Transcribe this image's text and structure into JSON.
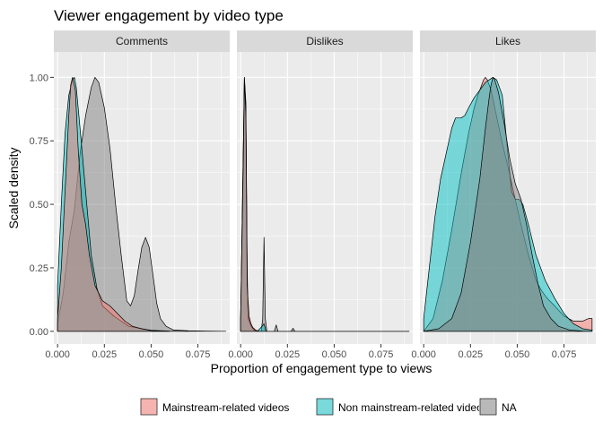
{
  "chart_data": {
    "type": "area",
    "title": "Viewer engagement by video type",
    "xlabel": "Proportion of engagement type to views",
    "ylabel": "Scaled density",
    "xlim": [
      -0.002,
      0.092
    ],
    "ylim": [
      -0.05,
      1.1
    ],
    "x_ticks": [
      0,
      0.025,
      0.05,
      0.075
    ],
    "x_tick_labels": [
      "0.000",
      "0.025",
      "0.050",
      "0.075"
    ],
    "y_ticks": [
      0,
      0.25,
      0.5,
      0.75,
      1
    ],
    "y_tick_labels": [
      "0.00",
      "0.25",
      "0.50",
      "0.75",
      "1.00"
    ],
    "grid": true,
    "legend_position": "bottom",
    "series_colors": {
      "Mainstream-related videos": "#F8766D",
      "Non mainstream-related videos": "#00BFC4",
      "NA": "#7F7F7F"
    },
    "legend": [
      {
        "name": "Mainstream-related videos",
        "color": "#F8766D"
      },
      {
        "name": "Non mainstream-related videos",
        "color": "#00BFC4"
      },
      {
        "name": "NA",
        "color": "#7F7F7F"
      }
    ],
    "facets": [
      {
        "name": "Comments",
        "series": [
          {
            "name": "NA",
            "points": [
              [
                0,
                0.03
              ],
              [
                0.003,
                0.15
              ],
              [
                0.006,
                0.35
              ],
              [
                0.009,
                0.48
              ],
              [
                0.012,
                0.7
              ],
              [
                0.015,
                0.85
              ],
              [
                0.018,
                0.96
              ],
              [
                0.02,
                1.0
              ],
              [
                0.022,
                0.98
              ],
              [
                0.025,
                0.88
              ],
              [
                0.028,
                0.72
              ],
              [
                0.031,
                0.5
              ],
              [
                0.034,
                0.3
              ],
              [
                0.037,
                0.12
              ],
              [
                0.039,
                0.1
              ],
              [
                0.041,
                0.14
              ],
              [
                0.043,
                0.24
              ],
              [
                0.045,
                0.33
              ],
              [
                0.047,
                0.37
              ],
              [
                0.049,
                0.33
              ],
              [
                0.051,
                0.22
              ],
              [
                0.053,
                0.11
              ],
              [
                0.055,
                0.05
              ],
              [
                0.058,
                0.02
              ],
              [
                0.062,
                0.005
              ],
              [
                0.07,
                0.002
              ],
              [
                0.08,
                0.001
              ],
              [
                0.09,
                0
              ]
            ]
          },
          {
            "name": "Non mainstream-related videos",
            "points": [
              [
                0,
                0.18
              ],
              [
                0.002,
                0.5
              ],
              [
                0.004,
                0.78
              ],
              [
                0.006,
                0.93
              ],
              [
                0.008,
                0.99
              ],
              [
                0.009,
                1.0
              ],
              [
                0.01,
                0.96
              ],
              [
                0.012,
                0.8
              ],
              [
                0.015,
                0.55
              ],
              [
                0.018,
                0.3
              ],
              [
                0.021,
                0.17
              ],
              [
                0.024,
                0.1
              ],
              [
                0.027,
                0.08
              ],
              [
                0.03,
                0.06
              ],
              [
                0.034,
                0.04
              ],
              [
                0.038,
                0.02
              ],
              [
                0.045,
                0.01
              ],
              [
                0.05,
                0.004
              ],
              [
                0.06,
                0.001
              ],
              [
                0.07,
                0
              ]
            ]
          },
          {
            "name": "Mainstream-related videos",
            "points": [
              [
                0,
                0.05
              ],
              [
                0.002,
                0.25
              ],
              [
                0.004,
                0.55
              ],
              [
                0.006,
                0.85
              ],
              [
                0.007,
                0.97
              ],
              [
                0.008,
                1.0
              ],
              [
                0.0095,
                0.95
              ],
              [
                0.011,
                0.72
              ],
              [
                0.013,
                0.5
              ],
              [
                0.015,
                0.42
              ],
              [
                0.017,
                0.3
              ],
              [
                0.02,
                0.18
              ],
              [
                0.024,
                0.12
              ],
              [
                0.028,
                0.1
              ],
              [
                0.032,
                0.07
              ],
              [
                0.036,
                0.04
              ],
              [
                0.04,
                0.02
              ],
              [
                0.045,
                0.01
              ],
              [
                0.05,
                0.003
              ],
              [
                0.06,
                0
              ]
            ]
          }
        ]
      },
      {
        "name": "Dislikes",
        "series": [
          {
            "name": "NA",
            "points": [
              [
                0,
                0.05
              ],
              [
                0.0015,
                0.75
              ],
              [
                0.002,
                1.0
              ],
              [
                0.0028,
                0.9
              ],
              [
                0.0035,
                0.25
              ],
              [
                0.004,
                0.06
              ],
              [
                0.005,
                0.04
              ],
              [
                0.006,
                0.02
              ],
              [
                0.007,
                0.01
              ],
              [
                0.008,
                0.002
              ],
              [
                0.0095,
                0.0
              ],
              [
                0.011,
                0.0
              ],
              [
                0.0118,
                0.05
              ],
              [
                0.0125,
                0.37
              ],
              [
                0.0132,
                0.05
              ],
              [
                0.014,
                0.0
              ],
              [
                0.018,
                0.0
              ],
              [
                0.019,
                0.025
              ],
              [
                0.02,
                0.0
              ],
              [
                0.027,
                0.0
              ],
              [
                0.028,
                0.012
              ],
              [
                0.029,
                0.0
              ],
              [
                0.09,
                0
              ]
            ]
          },
          {
            "name": "Non mainstream-related videos",
            "points": [
              [
                0,
                0.05
              ],
              [
                0.0015,
                0.75
              ],
              [
                0.002,
                1.0
              ],
              [
                0.0028,
                0.88
              ],
              [
                0.0035,
                0.2
              ],
              [
                0.004,
                0.05
              ],
              [
                0.005,
                0.03
              ],
              [
                0.006,
                0.015
              ],
              [
                0.007,
                0.005
              ],
              [
                0.009,
                0.0
              ],
              [
                0.0115,
                0.02
              ],
              [
                0.0125,
                0.03
              ],
              [
                0.0135,
                0.0
              ],
              [
                0.09,
                0
              ]
            ]
          },
          {
            "name": "Mainstream-related videos",
            "points": [
              [
                0,
                0.04
              ],
              [
                0.0015,
                0.7
              ],
              [
                0.002,
                0.99
              ],
              [
                0.0028,
                0.85
              ],
              [
                0.0035,
                0.18
              ],
              [
                0.0045,
                0.06
              ],
              [
                0.0055,
                0.03
              ],
              [
                0.0065,
                0.015
              ],
              [
                0.008,
                0.005
              ],
              [
                0.01,
                0.0
              ],
              [
                0.09,
                0
              ]
            ]
          }
        ]
      },
      {
        "name": "Likes",
        "series": [
          {
            "name": "Mainstream-related videos",
            "points": [
              [
                0,
                0.0
              ],
              [
                0.005,
                0.05
              ],
              [
                0.01,
                0.2
              ],
              [
                0.015,
                0.4
              ],
              [
                0.02,
                0.62
              ],
              [
                0.024,
                0.78
              ],
              [
                0.027,
                0.88
              ],
              [
                0.029,
                0.93
              ],
              [
                0.031,
                0.97
              ],
              [
                0.032,
                0.99
              ],
              [
                0.033,
                1.0
              ],
              [
                0.034,
                0.99
              ],
              [
                0.036,
                0.95
              ],
              [
                0.038,
                0.88
              ],
              [
                0.042,
                0.74
              ],
              [
                0.045,
                0.65
              ],
              [
                0.048,
                0.55
              ],
              [
                0.052,
                0.42
              ],
              [
                0.056,
                0.3
              ],
              [
                0.06,
                0.2
              ],
              [
                0.063,
                0.16
              ],
              [
                0.066,
                0.13
              ],
              [
                0.07,
                0.1
              ],
              [
                0.075,
                0.06
              ],
              [
                0.08,
                0.04
              ],
              [
                0.085,
                0.04
              ],
              [
                0.088,
                0.05
              ],
              [
                0.09,
                0.05
              ]
            ]
          },
          {
            "name": "Non mainstream-related videos",
            "points": [
              [
                0,
                0.05
              ],
              [
                0.003,
                0.25
              ],
              [
                0.006,
                0.45
              ],
              [
                0.009,
                0.6
              ],
              [
                0.012,
                0.7
              ],
              [
                0.015,
                0.8
              ],
              [
                0.017,
                0.84
              ],
              [
                0.02,
                0.84
              ],
              [
                0.022,
                0.85
              ],
              [
                0.024,
                0.88
              ],
              [
                0.027,
                0.92
              ],
              [
                0.03,
                0.95
              ],
              [
                0.033,
                0.98
              ],
              [
                0.035,
                0.99
              ],
              [
                0.037,
                1.0
              ],
              [
                0.039,
                0.99
              ],
              [
                0.042,
                0.93
              ],
              [
                0.045,
                0.7
              ],
              [
                0.047,
                0.55
              ],
              [
                0.049,
                0.52
              ],
              [
                0.051,
                0.52
              ],
              [
                0.053,
                0.5
              ],
              [
                0.056,
                0.42
              ],
              [
                0.06,
                0.3
              ],
              [
                0.065,
                0.2
              ],
              [
                0.07,
                0.13
              ],
              [
                0.075,
                0.07
              ],
              [
                0.08,
                0.03
              ],
              [
                0.085,
                0.01
              ],
              [
                0.09,
                0.005
              ]
            ]
          },
          {
            "name": "NA",
            "points": [
              [
                0,
                0.0
              ],
              [
                0.008,
                0.01
              ],
              [
                0.015,
                0.05
              ],
              [
                0.02,
                0.15
              ],
              [
                0.025,
                0.35
              ],
              [
                0.03,
                0.6
              ],
              [
                0.033,
                0.8
              ],
              [
                0.035,
                0.92
              ],
              [
                0.036,
                0.97
              ],
              [
                0.037,
                1.0
              ],
              [
                0.038,
                0.99
              ],
              [
                0.04,
                0.94
              ],
              [
                0.043,
                0.82
              ],
              [
                0.046,
                0.68
              ],
              [
                0.049,
                0.58
              ],
              [
                0.052,
                0.52
              ],
              [
                0.055,
                0.42
              ],
              [
                0.058,
                0.3
              ],
              [
                0.061,
                0.19
              ],
              [
                0.064,
                0.1
              ],
              [
                0.068,
                0.05
              ],
              [
                0.072,
                0.02
              ],
              [
                0.078,
                0.005
              ],
              [
                0.085,
                0.001
              ],
              [
                0.09,
                0
              ]
            ]
          }
        ]
      }
    ]
  }
}
